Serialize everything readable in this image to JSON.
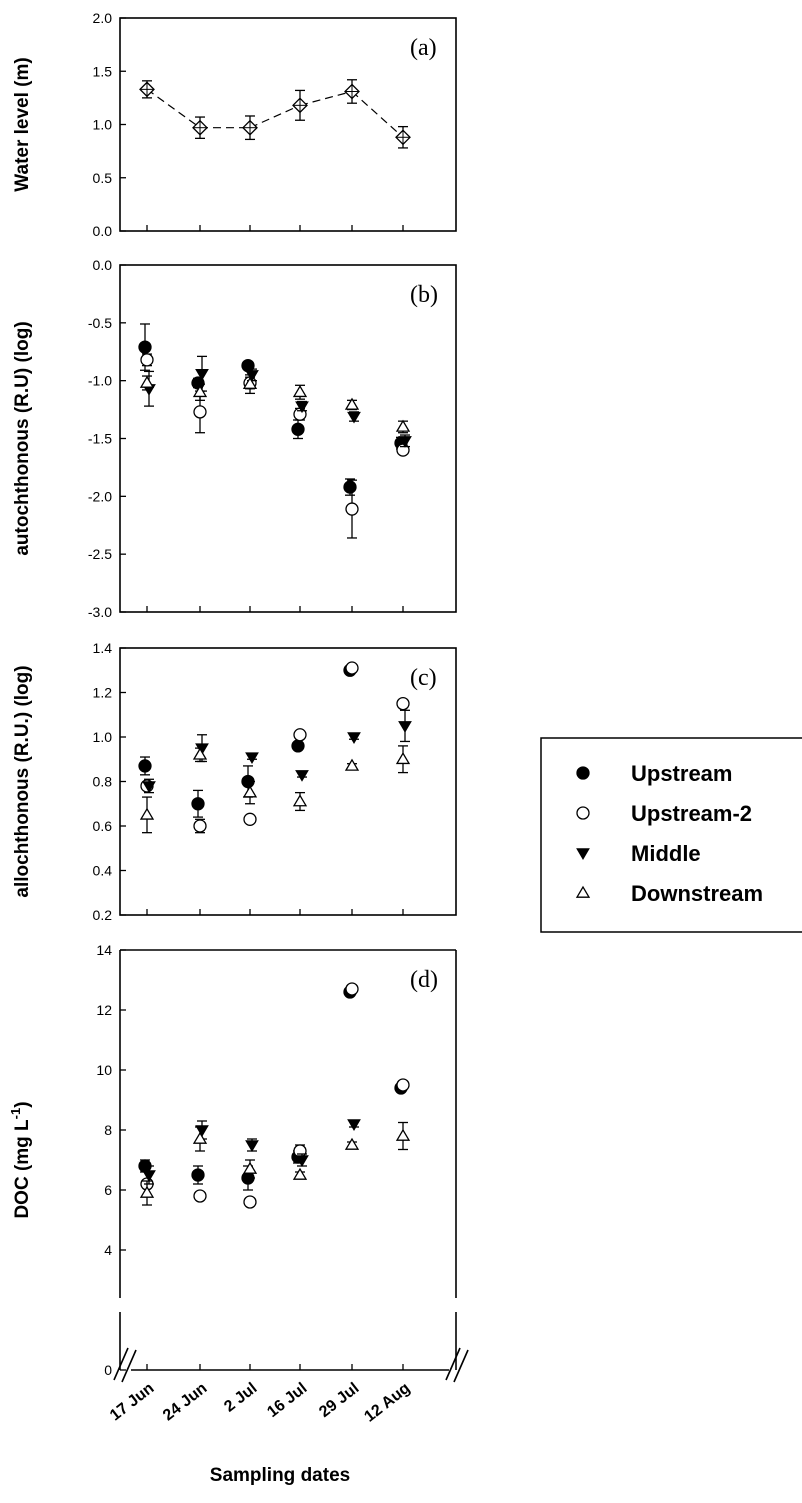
{
  "x_title": "Sampling dates",
  "chart_data": [
    {
      "type": "scatter",
      "panel_label": "(a)",
      "ylabel": "Water level (m)",
      "ylim": [
        0,
        2.0
      ],
      "yticks": [
        "0.0",
        "0.5",
        "1.0",
        "1.5",
        "2.0"
      ],
      "categories": [
        "17 Jun",
        "24 Jun",
        "2 Jul",
        "16 Jul",
        "29 Jul",
        "12 Aug"
      ],
      "series": [
        {
          "marker": "diamond-cross",
          "connected": true,
          "values": [
            1.33,
            0.97,
            0.97,
            1.18,
            1.31,
            0.88
          ],
          "errors": [
            0.08,
            0.1,
            0.11,
            0.14,
            0.11,
            0.1
          ]
        }
      ]
    },
    {
      "type": "scatter",
      "panel_label": "(b)",
      "ylabel": "autochthonous (R.U) (log)",
      "ylim": [
        -3.0,
        0.0
      ],
      "yticks": [
        "-3.0",
        "-2.5",
        "-2.0",
        "-1.5",
        "-1.0",
        "-0.5",
        "0.0"
      ],
      "categories": [
        "17 Jun",
        "24 Jun",
        "2 Jul",
        "16 Jul",
        "29 Jul",
        "12 Aug"
      ],
      "series": [
        {
          "name": "Upstream",
          "marker": "circle-filled",
          "values": [
            -0.71,
            -1.02,
            -0.87,
            -1.42,
            -1.92,
            -1.54
          ],
          "errors": [
            0.2,
            0.04,
            0.03,
            0.08,
            0.07,
            0.05
          ]
        },
        {
          "name": "Upstream-2",
          "marker": "circle-open",
          "values": [
            -0.82,
            -1.27,
            -1.02,
            -1.29,
            -2.11,
            -1.6
          ],
          "errors": [
            0.05,
            0.18,
            0.05,
            0.05,
            0.25,
            0.03
          ]
        },
        {
          "name": "Middle",
          "marker": "triangle-down-filled",
          "values": [
            -1.07,
            -0.94,
            -0.95,
            -1.22,
            -1.31,
            -1.52
          ],
          "errors": [
            0.15,
            0.15,
            0.05,
            0.04,
            0.04,
            0.05
          ]
        },
        {
          "name": "Downstream",
          "marker": "triangle-up-open",
          "values": [
            -1.02,
            -1.1,
            -1.03,
            -1.1,
            -1.21,
            -1.4
          ],
          "errors": [
            0.06,
            0.07,
            0.08,
            0.06,
            0.04,
            0.05
          ]
        }
      ]
    },
    {
      "type": "scatter",
      "panel_label": "(c)",
      "ylabel": "allochthonous (R.U.) (log)",
      "ylim": [
        0.2,
        1.4
      ],
      "yticks": [
        "0.2",
        "0.4",
        "0.6",
        "0.8",
        "1.0",
        "1.2",
        "1.4"
      ],
      "categories": [
        "17 Jun",
        "24 Jun",
        "2 Jul",
        "16 Jul",
        "29 Jul",
        "12 Aug"
      ],
      "series": [
        {
          "name": "Upstream",
          "marker": "circle-filled",
          "values": [
            0.87,
            0.7,
            0.8,
            0.96,
            1.3,
            null
          ],
          "errors": [
            0.04,
            0.06,
            0.07,
            0.01,
            0.01,
            0
          ]
        },
        {
          "name": "Upstream-2",
          "marker": "circle-open",
          "values": [
            0.78,
            0.6,
            0.63,
            1.01,
            1.31,
            1.15
          ],
          "errors": [
            0.01,
            0.03,
            0.01,
            0.01,
            0.01,
            0.01
          ]
        },
        {
          "name": "Middle",
          "marker": "triangle-down-filled",
          "values": [
            0.78,
            0.95,
            0.91,
            0.83,
            1.0,
            1.05
          ],
          "errors": [
            0.03,
            0.06,
            0.01,
            0.01,
            0.01,
            0.07
          ]
        },
        {
          "name": "Downstream",
          "marker": "triangle-up-open",
          "values": [
            0.65,
            0.92,
            0.75,
            0.71,
            0.87,
            0.9
          ],
          "errors": [
            0.08,
            0.03,
            0.05,
            0.04,
            0.01,
            0.06
          ]
        }
      ]
    },
    {
      "type": "scatter",
      "panel_label": "(d)",
      "ylabel": "DOC (mg L-1)",
      "ylabel_main": "DOC (mg L",
      "ylabel_sup": "-1",
      "ylabel_close": ")",
      "ylim": [
        0,
        14
      ],
      "yticks": [
        "0",
        "4",
        "6",
        "8",
        "10",
        "12",
        "14"
      ],
      "categories": [
        "17 Jun",
        "24 Jun",
        "2 Jul",
        "16 Jul",
        "29 Jul",
        "12 Aug"
      ],
      "series": [
        {
          "name": "Upstream",
          "marker": "circle-filled",
          "values": [
            6.8,
            6.5,
            6.4,
            7.1,
            12.6,
            9.4
          ],
          "errors": [
            0.2,
            0.3,
            0.4,
            0.2,
            0.1,
            0.1
          ]
        },
        {
          "name": "Upstream-2",
          "marker": "circle-open",
          "values": [
            6.2,
            5.8,
            5.6,
            7.3,
            12.7,
            9.5
          ],
          "errors": [
            0.1,
            0.1,
            0.1,
            0.2,
            0.1,
            0.1
          ]
        },
        {
          "name": "Middle",
          "marker": "triangle-down-filled",
          "values": [
            6.5,
            8.0,
            7.5,
            7.0,
            8.2,
            null
          ],
          "errors": [
            0.3,
            0.3,
            0.2,
            0.2,
            0.1,
            0
          ]
        },
        {
          "name": "Downstream",
          "marker": "triangle-up-open",
          "values": [
            5.9,
            7.7,
            6.7,
            6.5,
            7.5,
            7.8
          ],
          "errors": [
            0.4,
            0.4,
            0.3,
            0.1,
            0.1,
            0.45
          ]
        }
      ]
    }
  ],
  "legend": {
    "items": [
      {
        "label": "Upstream",
        "marker": "circle-filled"
      },
      {
        "label": "Upstream-2",
        "marker": "circle-open"
      },
      {
        "label": "Middle",
        "marker": "triangle-down-filled"
      },
      {
        "label": "Downstream",
        "marker": "triangle-up-open"
      }
    ]
  }
}
